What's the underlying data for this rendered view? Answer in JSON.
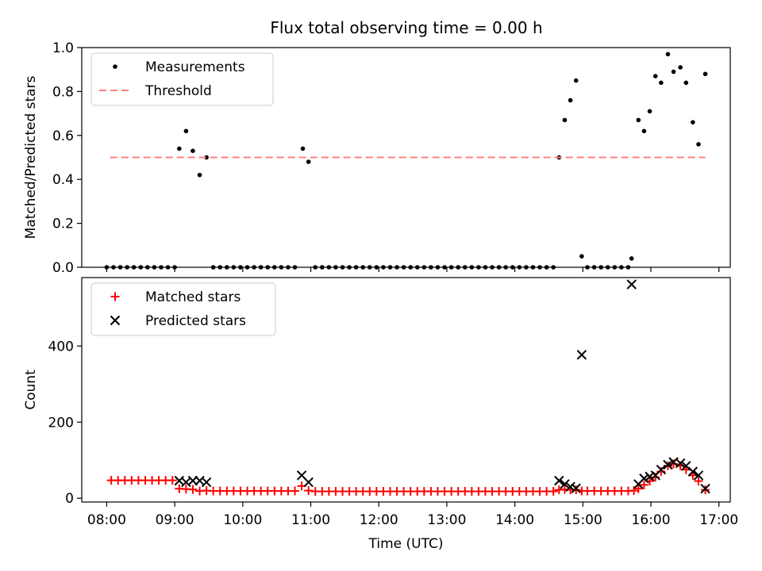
{
  "title": "Flux total observing time = 0.00 h",
  "colors": {
    "measurement": "#000000",
    "threshold": "#ff7f7f",
    "matched": "#ff0000",
    "predicted": "#000000"
  },
  "chart_data": [
    {
      "type": "scatter",
      "ylabel": "Matched/Predicted stars",
      "xlim": [
        "07:38",
        "17:10"
      ],
      "ylim": [
        0,
        1.0
      ],
      "yticks": [
        0.0,
        0.2,
        0.4,
        0.6,
        0.8,
        1.0
      ],
      "ytick_labels": [
        "0.0",
        "0.2",
        "0.4",
        "0.6",
        "0.8",
        "1.0"
      ],
      "legend": {
        "placement": "top-left",
        "entries": [
          "Measurements",
          "Threshold"
        ]
      },
      "series": [
        {
          "name": "Measurements",
          "marker": "dot",
          "points": [
            [
              "08:00",
              0.0
            ],
            [
              "08:06",
              0.0
            ],
            [
              "08:12",
              0.0
            ],
            [
              "08:18",
              0.0
            ],
            [
              "08:24",
              0.0
            ],
            [
              "08:30",
              0.0
            ],
            [
              "08:36",
              0.0
            ],
            [
              "08:42",
              0.0
            ],
            [
              "08:48",
              0.0
            ],
            [
              "08:54",
              0.0
            ],
            [
              "09:00",
              0.0
            ],
            [
              "09:04",
              0.54
            ],
            [
              "09:10",
              0.62
            ],
            [
              "09:16",
              0.53
            ],
            [
              "09:22",
              0.42
            ],
            [
              "09:28",
              0.5
            ],
            [
              "09:34",
              0.0
            ],
            [
              "09:40",
              0.0
            ],
            [
              "09:46",
              0.0
            ],
            [
              "09:52",
              0.0
            ],
            [
              "09:58",
              0.0
            ],
            [
              "10:04",
              0.0
            ],
            [
              "10:10",
              0.0
            ],
            [
              "10:16",
              0.0
            ],
            [
              "10:22",
              0.0
            ],
            [
              "10:28",
              0.0
            ],
            [
              "10:34",
              0.0
            ],
            [
              "10:40",
              0.0
            ],
            [
              "10:46",
              0.0
            ],
            [
              "10:53",
              0.54
            ],
            [
              "10:58",
              0.48
            ],
            [
              "11:04",
              0.0
            ],
            [
              "11:10",
              0.0
            ],
            [
              "11:16",
              0.0
            ],
            [
              "11:22",
              0.0
            ],
            [
              "11:28",
              0.0
            ],
            [
              "11:34",
              0.0
            ],
            [
              "11:40",
              0.0
            ],
            [
              "11:46",
              0.0
            ],
            [
              "11:52",
              0.0
            ],
            [
              "11:58",
              0.0
            ],
            [
              "12:04",
              0.0
            ],
            [
              "12:10",
              0.0
            ],
            [
              "12:16",
              0.0
            ],
            [
              "12:22",
              0.0
            ],
            [
              "12:28",
              0.0
            ],
            [
              "12:34",
              0.0
            ],
            [
              "12:40",
              0.0
            ],
            [
              "12:46",
              0.0
            ],
            [
              "12:52",
              0.0
            ],
            [
              "12:58",
              0.0
            ],
            [
              "13:04",
              0.0
            ],
            [
              "13:10",
              0.0
            ],
            [
              "13:16",
              0.0
            ],
            [
              "13:22",
              0.0
            ],
            [
              "13:28",
              0.0
            ],
            [
              "13:34",
              0.0
            ],
            [
              "13:40",
              0.0
            ],
            [
              "13:46",
              0.0
            ],
            [
              "13:52",
              0.0
            ],
            [
              "13:58",
              0.0
            ],
            [
              "14:04",
              0.0
            ],
            [
              "14:10",
              0.0
            ],
            [
              "14:16",
              0.0
            ],
            [
              "14:22",
              0.0
            ],
            [
              "14:28",
              0.0
            ],
            [
              "14:34",
              0.0
            ],
            [
              "14:39",
              0.5
            ],
            [
              "14:44",
              0.67
            ],
            [
              "14:49",
              0.76
            ],
            [
              "14:54",
              0.85
            ],
            [
              "14:59",
              0.05
            ],
            [
              "15:04",
              0.0
            ],
            [
              "15:10",
              0.0
            ],
            [
              "15:16",
              0.0
            ],
            [
              "15:22",
              0.0
            ],
            [
              "15:28",
              0.0
            ],
            [
              "15:34",
              0.0
            ],
            [
              "15:40",
              0.0
            ],
            [
              "15:43",
              0.04
            ],
            [
              "15:49",
              0.67
            ],
            [
              "15:54",
              0.62
            ],
            [
              "15:59",
              0.71
            ],
            [
              "16:04",
              0.87
            ],
            [
              "16:09",
              0.84
            ],
            [
              "16:15",
              0.97
            ],
            [
              "16:20",
              0.89
            ],
            [
              "16:26",
              0.91
            ],
            [
              "16:31",
              0.84
            ],
            [
              "16:37",
              0.66
            ],
            [
              "16:42",
              0.56
            ],
            [
              "16:48",
              0.88
            ]
          ]
        },
        {
          "name": "Threshold",
          "style": "dashed",
          "points": [
            [
              "08:03",
              0.5
            ],
            [
              "16:48",
              0.5
            ]
          ]
        }
      ]
    },
    {
      "type": "scatter",
      "xlabel": "Time (UTC)",
      "ylabel": "Count",
      "xlim": [
        "07:38",
        "17:10"
      ],
      "ylim": [
        -10,
        580
      ],
      "yticks": [
        0,
        200,
        400
      ],
      "ytick_labels": [
        "0",
        "200",
        "400"
      ],
      "xticks": [
        "08:00",
        "09:00",
        "10:00",
        "11:00",
        "12:00",
        "13:00",
        "14:00",
        "15:00",
        "16:00",
        "17:00"
      ],
      "xtick_labels": [
        "08:00",
        "09:00",
        "10:00",
        "11:00",
        "12:00",
        "13:00",
        "14:00",
        "15:00",
        "16:00",
        "17:00"
      ],
      "legend": {
        "placement": "top-left",
        "entries": [
          "Matched stars",
          "Predicted stars"
        ]
      },
      "series": [
        {
          "name": "Matched stars",
          "marker": "plus",
          "points": [
            [
              "08:04",
              47
            ],
            [
              "08:10",
              47
            ],
            [
              "08:16",
              47
            ],
            [
              "08:22",
              47
            ],
            [
              "08:28",
              47
            ],
            [
              "08:34",
              47
            ],
            [
              "08:40",
              47
            ],
            [
              "08:46",
              47
            ],
            [
              "08:52",
              47
            ],
            [
              "08:58",
              47
            ],
            [
              "09:04",
              25
            ],
            [
              "09:10",
              24
            ],
            [
              "09:16",
              23
            ],
            [
              "09:22",
              19
            ],
            [
              "09:28",
              20
            ],
            [
              "09:34",
              19
            ],
            [
              "09:40",
              19
            ],
            [
              "09:46",
              19
            ],
            [
              "09:52",
              19
            ],
            [
              "09:58",
              19
            ],
            [
              "10:04",
              19
            ],
            [
              "10:10",
              19
            ],
            [
              "10:16",
              19
            ],
            [
              "10:22",
              19
            ],
            [
              "10:28",
              19
            ],
            [
              "10:34",
              19
            ],
            [
              "10:40",
              19
            ],
            [
              "10:46",
              19
            ],
            [
              "10:52",
              32
            ],
            [
              "10:58",
              20
            ],
            [
              "11:04",
              18
            ],
            [
              "11:10",
              18
            ],
            [
              "11:16",
              18
            ],
            [
              "11:22",
              18
            ],
            [
              "11:28",
              18
            ],
            [
              "11:34",
              18
            ],
            [
              "11:40",
              18
            ],
            [
              "11:46",
              18
            ],
            [
              "11:52",
              18
            ],
            [
              "11:58",
              18
            ],
            [
              "12:04",
              18
            ],
            [
              "12:10",
              18
            ],
            [
              "12:16",
              18
            ],
            [
              "12:22",
              18
            ],
            [
              "12:28",
              18
            ],
            [
              "12:34",
              18
            ],
            [
              "12:40",
              18
            ],
            [
              "12:46",
              18
            ],
            [
              "12:52",
              18
            ],
            [
              "12:58",
              18
            ],
            [
              "13:04",
              18
            ],
            [
              "13:10",
              18
            ],
            [
              "13:16",
              18
            ],
            [
              "13:22",
              18
            ],
            [
              "13:28",
              18
            ],
            [
              "13:34",
              18
            ],
            [
              "13:40",
              18
            ],
            [
              "13:46",
              18
            ],
            [
              "13:52",
              18
            ],
            [
              "13:58",
              18
            ],
            [
              "14:04",
              18
            ],
            [
              "14:10",
              18
            ],
            [
              "14:16",
              18
            ],
            [
              "14:22",
              18
            ],
            [
              "14:28",
              18
            ],
            [
              "14:34",
              18
            ],
            [
              "14:39",
              22
            ],
            [
              "14:44",
              23
            ],
            [
              "14:49",
              22
            ],
            [
              "14:54",
              22
            ],
            [
              "14:59",
              19
            ],
            [
              "15:04",
              19
            ],
            [
              "15:10",
              19
            ],
            [
              "15:16",
              19
            ],
            [
              "15:22",
              19
            ],
            [
              "15:28",
              19
            ],
            [
              "15:34",
              19
            ],
            [
              "15:40",
              19
            ],
            [
              "15:45",
              20
            ],
            [
              "15:49",
              25
            ],
            [
              "15:54",
              35
            ],
            [
              "15:59",
              45
            ],
            [
              "16:04",
              55
            ],
            [
              "16:09",
              70
            ],
            [
              "16:15",
              85
            ],
            [
              "16:20",
              90
            ],
            [
              "16:26",
              85
            ],
            [
              "16:31",
              75
            ],
            [
              "16:37",
              60
            ],
            [
              "16:42",
              45
            ],
            [
              "16:48",
              22
            ]
          ]
        },
        {
          "name": "Predicted stars",
          "marker": "x",
          "points": [
            [
              "09:04",
              46
            ],
            [
              "09:10",
              42
            ],
            [
              "09:16",
              46
            ],
            [
              "09:22",
              46
            ],
            [
              "09:28",
              42
            ],
            [
              "10:52",
              60
            ],
            [
              "10:58",
              42
            ],
            [
              "14:39",
              46
            ],
            [
              "14:44",
              37
            ],
            [
              "14:49",
              30
            ],
            [
              "14:54",
              26
            ],
            [
              "14:59",
              377
            ],
            [
              "15:43",
              562
            ],
            [
              "15:49",
              37
            ],
            [
              "15:54",
              52
            ],
            [
              "15:59",
              57
            ],
            [
              "16:04",
              60
            ],
            [
              "16:09",
              75
            ],
            [
              "16:15",
              88
            ],
            [
              "16:20",
              95
            ],
            [
              "16:26",
              92
            ],
            [
              "16:31",
              85
            ],
            [
              "16:37",
              70
            ],
            [
              "16:42",
              60
            ],
            [
              "16:48",
              25
            ]
          ]
        }
      ]
    }
  ]
}
